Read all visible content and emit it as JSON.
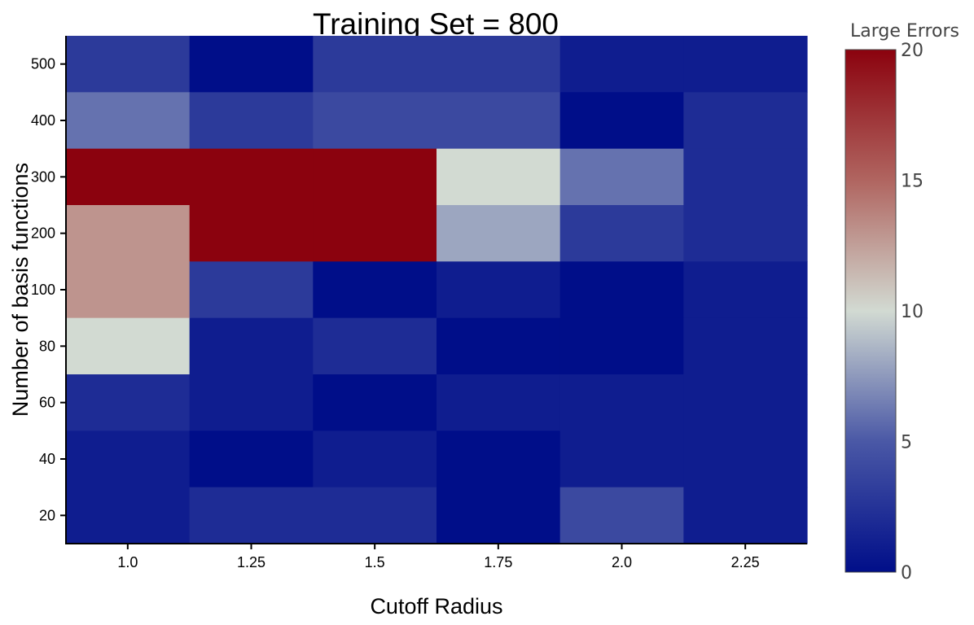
{
  "chart_data": {
    "type": "heatmap",
    "title": "Training Set = 800",
    "xlabel": "Cutoff Radius",
    "ylabel": "Number of basis functions",
    "x_tick_labels": [
      "1.0",
      "1.25",
      "1.5",
      "1.75",
      "2.0",
      "2.25"
    ],
    "y_tick_labels": [
      "500",
      "400",
      "300",
      "200",
      "100",
      "80",
      "60",
      "40",
      "20"
    ],
    "values": [
      [
        3,
        0,
        3,
        3,
        1,
        1
      ],
      [
        6,
        3,
        4,
        4,
        0,
        2
      ],
      [
        20,
        20,
        20,
        10,
        6,
        2
      ],
      [
        13,
        20,
        20,
        8,
        3,
        2
      ],
      [
        13,
        3,
        0,
        1,
        0,
        1
      ],
      [
        10,
        1,
        2,
        0,
        0,
        1
      ],
      [
        2,
        1,
        0,
        1,
        1,
        1
      ],
      [
        1,
        0,
        1,
        0,
        1,
        1
      ],
      [
        1,
        2,
        2,
        0,
        4,
        1
      ]
    ],
    "colorbar": {
      "title": "Large Errors",
      "range": [
        0,
        20
      ],
      "tick_labels": [
        "0",
        "5",
        "10",
        "15",
        "20"
      ],
      "colorscale": [
        {
          "value": 0,
          "color": "#000e89"
        },
        {
          "value": 5,
          "color": "#4a58a6"
        },
        {
          "value": 10,
          "color": "#d2dad2"
        },
        {
          "value": 15,
          "color": "#b06560"
        },
        {
          "value": 20,
          "color": "#8b020e"
        }
      ]
    }
  }
}
